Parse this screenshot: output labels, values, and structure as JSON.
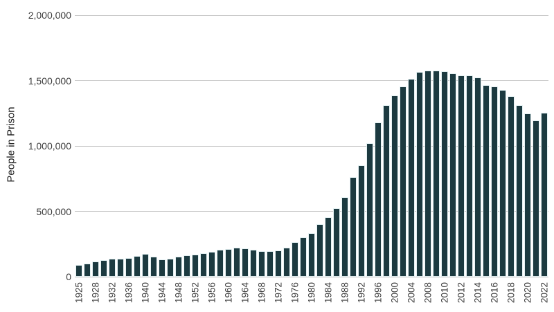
{
  "chart": {
    "y_axis_title": "People in Prison",
    "colors": {
      "bar": "#1c3a40",
      "bar_stroke": "#e4f1f3",
      "gridline": "#c6c6c6",
      "tick_text": "#3d3d3d",
      "axis_title_text": "#1a1a1a",
      "background": "#ffffff"
    }
  },
  "chart_data": {
    "type": "bar",
    "title": "",
    "xlabel": "",
    "ylabel": "People in Prison",
    "ylim": [
      0,
      2000000
    ],
    "grid": "horizontal",
    "bar_color": "#1c3a40",
    "y_ticks": [
      {
        "value": 0,
        "label": "0"
      },
      {
        "value": 500000,
        "label": "500,000"
      },
      {
        "value": 1000000,
        "label": "1,000,000"
      },
      {
        "value": 1500000,
        "label": "1,500,000"
      },
      {
        "value": 2000000,
        "label": "2,000,000"
      }
    ],
    "x_tick_labels": [
      "1925",
      "1928",
      "1932",
      "1936",
      "1940",
      "1944",
      "1948",
      "1952",
      "1956",
      "1960",
      "1964",
      "1968",
      "1972",
      "1976",
      "1980",
      "1984",
      "1988",
      "1992",
      "1996",
      "2000",
      "2004",
      "2008",
      "2010",
      "2012",
      "2014",
      "2016",
      "2018",
      "2020",
      "2022"
    ],
    "x_tick_every_other_bar": true,
    "x": [
      1925,
      1926,
      1928,
      1930,
      1932,
      1934,
      1936,
      1938,
      1940,
      1942,
      1944,
      1946,
      1948,
      1950,
      1952,
      1954,
      1956,
      1958,
      1960,
      1962,
      1964,
      1966,
      1968,
      1970,
      1972,
      1974,
      1976,
      1978,
      1980,
      1982,
      1984,
      1986,
      1988,
      1990,
      1992,
      1994,
      1996,
      1998,
      2000,
      2002,
      2004,
      2006,
      2008,
      2009,
      2010,
      2011,
      2012,
      2013,
      2014,
      2015,
      2016,
      2017,
      2018,
      2019,
      2020,
      2021,
      2022
    ],
    "values": [
      92000,
      98000,
      117000,
      127000,
      138000,
      138000,
      145000,
      159000,
      176000,
      153000,
      132000,
      139000,
      156000,
      164000,
      168000,
      179000,
      190000,
      206000,
      213000,
      220000,
      217000,
      208000,
      198000,
      198000,
      200000,
      222000,
      265000,
      300000,
      332000,
      403000,
      455000,
      525000,
      608000,
      760000,
      850000,
      1020000,
      1180000,
      1310000,
      1385000,
      1455000,
      1515000,
      1568000,
      1575000,
      1576000,
      1572000,
      1556000,
      1540000,
      1541000,
      1524000,
      1465000,
      1455000,
      1428000,
      1380000,
      1310000,
      1250000,
      1195000,
      1255000
    ]
  }
}
